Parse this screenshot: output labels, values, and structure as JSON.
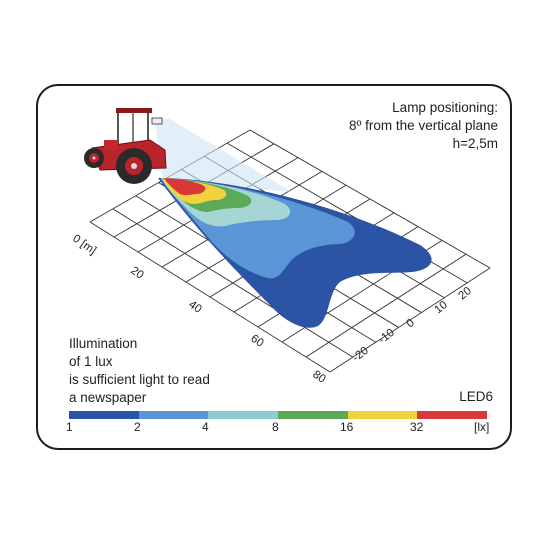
{
  "note_top": {
    "line1": "Lamp positioning:",
    "line2": "8º from the vertical plane",
    "line3": "h=2,5m"
  },
  "note_bottom": {
    "line1": "Illumination",
    "line2": "of 1 lux",
    "line3": "is sufficient light to read",
    "line4": "a newspaper"
  },
  "model": "LED6",
  "x_axis_ticks": [
    "0 [m]",
    "20",
    "40",
    "60",
    "80"
  ],
  "y_axis_ticks": [
    "20",
    "10",
    "0",
    "-10",
    "-20"
  ],
  "scale": {
    "labels": [
      "1",
      "2",
      "4",
      "8",
      "16",
      "32",
      "[lx]"
    ],
    "colors": [
      "#2c54a4",
      "#5a95d5",
      "#8fcbd0",
      "#5aaa58",
      "#f2d23a",
      "#d8383a"
    ]
  },
  "zone_colors": {
    "lux1": "#2c54a4",
    "lux2": "#5a95d5",
    "lux4": "#a6d6d4",
    "lux8": "#5aaa58",
    "lux16": "#f2d23a",
    "lux32": "#d8383a"
  }
}
